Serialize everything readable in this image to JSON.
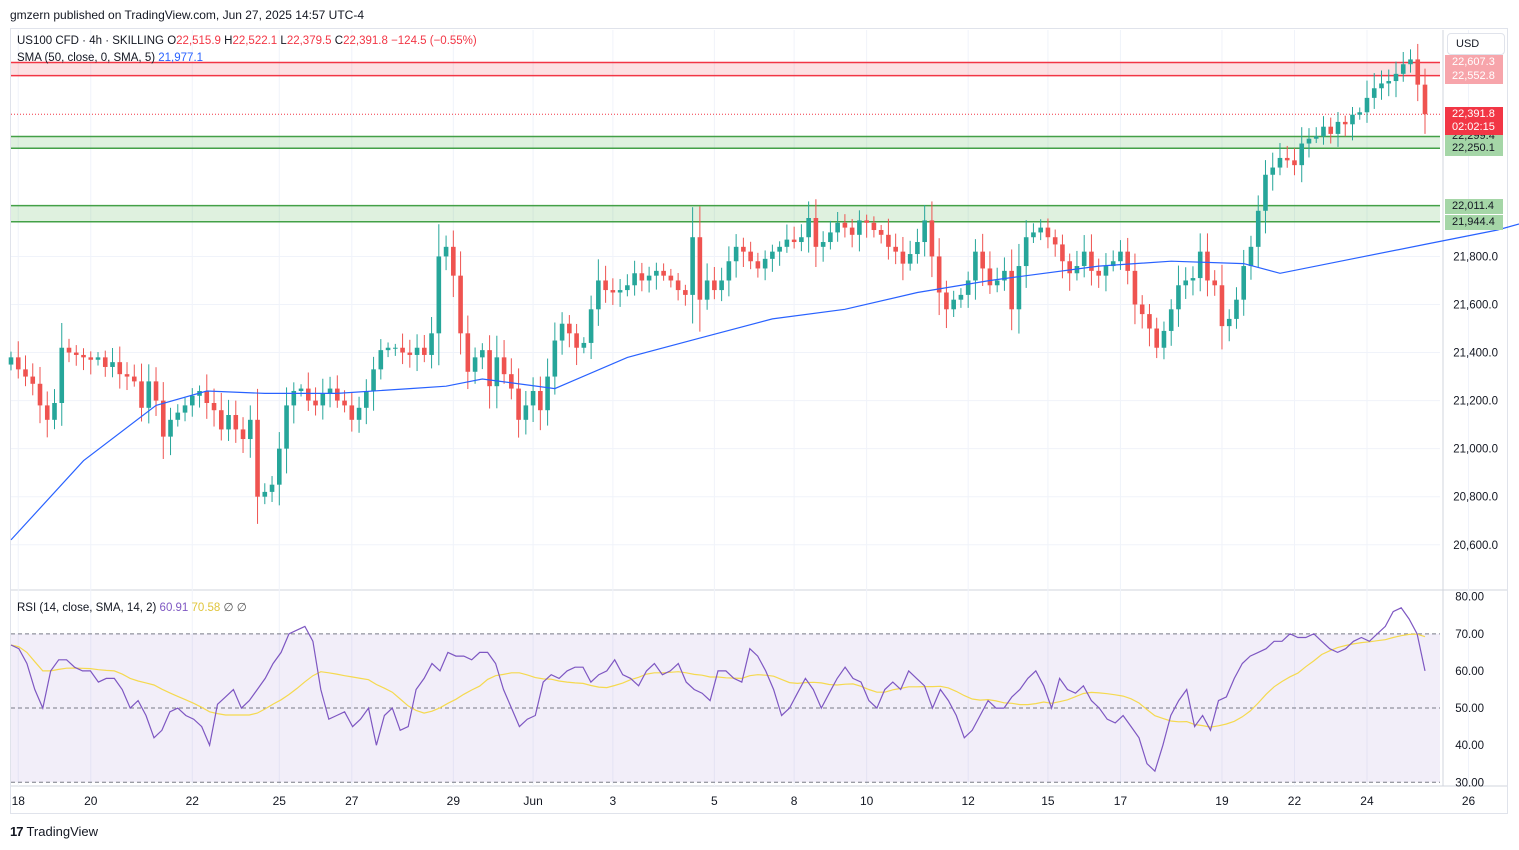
{
  "header": {
    "publish_text": "gmzern published on TradingView.com, Jun 27, 2025 14:57 UTC-4"
  },
  "legend": {
    "symbol": "US100 CFD · 4h · SKILLING",
    "o_label": "O",
    "o_value": "22,515.9",
    "h_label": "H",
    "h_value": "22,522.1",
    "l_label": "L",
    "l_value": "22,379.5",
    "c_label": "C",
    "c_value": "22,391.8",
    "change": "−124.5 (−0.55%)",
    "sma_label": "SMA (50, close, 0, SMA, 5)",
    "sma_value": "21,977.1",
    "rsi_label": "RSI (14, close, SMA, 14, 2)",
    "rsi_value": "60.91",
    "rsi_sma_value": "70.58",
    "rsi_empty1": "∅",
    "rsi_empty2": "∅"
  },
  "currency_button": "USD",
  "footer": {
    "brand": "TradingView",
    "logo_mark": "17"
  },
  "colors": {
    "up": "#26a69a",
    "down": "#ef5350",
    "sma": "#2962ff",
    "rsi": "#7e57c2",
    "rsi_sma": "#f5d94f",
    "resistance": "#f23645",
    "support": "#43a047"
  },
  "chart_data": {
    "type": "candlestick",
    "title": "US100 CFD · 4h · SKILLING",
    "price_axis": {
      "ticks": [
        20600,
        20800,
        21000,
        21200,
        21400,
        21600,
        21800
      ],
      "ylim": [
        20420,
        22730
      ]
    },
    "rsi_axis": {
      "ticks": [
        30,
        40,
        50,
        60,
        70,
        80
      ],
      "ylim": [
        29,
        81
      ]
    },
    "x_ticks": [
      {
        "label": "18",
        "i": 1
      },
      {
        "label": "20",
        "i": 11
      },
      {
        "label": "22",
        "i": 25
      },
      {
        "label": "25",
        "i": 37
      },
      {
        "label": "27",
        "i": 47
      },
      {
        "label": "29",
        "i": 61
      },
      {
        "label": "Jun",
        "i": 72
      },
      {
        "label": "3",
        "i": 83
      },
      {
        "label": "5",
        "i": 97
      },
      {
        "label": "8",
        "i": 108
      },
      {
        "label": "10",
        "i": 118
      },
      {
        "label": "12",
        "i": 132
      },
      {
        "label": "15",
        "i": 143
      },
      {
        "label": "17",
        "i": 153
      },
      {
        "label": "19",
        "i": 167
      },
      {
        "label": "22",
        "i": 177
      },
      {
        "label": "24",
        "i": 187
      },
      {
        "label": "26",
        "i": 201
      },
      {
        "label": "29",
        "i": 212
      }
    ],
    "zones": [
      {
        "kind": "resistance",
        "low": 22552.8,
        "high": 22607.3,
        "low_label": "22,552.8",
        "high_label": "22,607.3"
      },
      {
        "kind": "support",
        "low": 22250.1,
        "high": 22299.4,
        "low_label": "22,250.1",
        "high_label": "22,299.4"
      },
      {
        "kind": "support",
        "low": 21944.4,
        "high": 22011.4,
        "low_label": "21,944.4",
        "high_label": "22,011.4"
      }
    ],
    "last_price": {
      "value": 22391.8,
      "label": "22,391.8",
      "countdown": "02:02:15"
    },
    "closes": [
      21380,
      21330,
      21300,
      21270,
      21180,
      21120,
      21190,
      21420,
      21400,
      21390,
      21380,
      21370,
      21380,
      21340,
      21360,
      21310,
      21300,
      21280,
      21170,
      21280,
      21200,
      21050,
      21120,
      21150,
      21180,
      21220,
      21240,
      21190,
      21160,
      21080,
      21140,
      21080,
      21040,
      21120,
      20800,
      20820,
      20850,
      21000,
      21180,
      21240,
      21250,
      21200,
      21180,
      21230,
      21250,
      21200,
      21180,
      21120,
      21170,
      21240,
      21330,
      21410,
      21420,
      21420,
      21400,
      21390,
      21420,
      21390,
      21480,
      21800,
      21840,
      21720,
      21480,
      21320,
      21380,
      21410,
      21260,
      21380,
      21310,
      21250,
      21120,
      21180,
      21240,
      21160,
      21300,
      21450,
      21520,
      21480,
      21420,
      21440,
      21580,
      21700,
      21660,
      21650,
      21660,
      21680,
      21730,
      21700,
      21720,
      21740,
      21720,
      21700,
      21660,
      21640,
      21880,
      21620,
      21700,
      21660,
      21700,
      21780,
      21840,
      21820,
      21780,
      21750,
      21790,
      21820,
      21840,
      21870,
      21860,
      21880,
      21960,
      21840,
      21860,
      21900,
      21940,
      21920,
      21890,
      21950,
      21940,
      21910,
      21890,
      21840,
      21820,
      21770,
      21810,
      21860,
      21950,
      21800,
      21650,
      21580,
      21620,
      21640,
      21700,
      21820,
      21750,
      21680,
      21700,
      21740,
      21580,
      21760,
      21880,
      21900,
      21920,
      21880,
      21850,
      21780,
      21730,
      21760,
      21820,
      21740,
      21720,
      21760,
      21780,
      21820,
      21740,
      21600,
      21560,
      21500,
      21420,
      21490,
      21580,
      21680,
      21700,
      21710,
      21820,
      21700,
      21680,
      21510,
      21540,
      21620,
      21760,
      21840,
      21990,
      22140,
      22170,
      22210,
      22200,
      22180,
      22270,
      22290,
      22300,
      22340,
      22310,
      22360,
      22350,
      22390,
      22400,
      22460,
      22500,
      22520,
      22530,
      22560,
      22600,
      22620,
      22515,
      22392
    ],
    "sma_points": [
      [
        0,
        20620
      ],
      [
        10,
        20950
      ],
      [
        20,
        21180
      ],
      [
        27,
        21240
      ],
      [
        35,
        21230
      ],
      [
        45,
        21230
      ],
      [
        55,
        21250
      ],
      [
        60,
        21260
      ],
      [
        65,
        21290
      ],
      [
        75,
        21250
      ],
      [
        85,
        21380
      ],
      [
        95,
        21460
      ],
      [
        105,
        21540
      ],
      [
        115,
        21580
      ],
      [
        125,
        21650
      ],
      [
        135,
        21700
      ],
      [
        140,
        21720
      ],
      [
        150,
        21760
      ],
      [
        160,
        21780
      ],
      [
        170,
        21770
      ],
      [
        175,
        21730
      ],
      [
        185,
        21790
      ],
      [
        195,
        21850
      ],
      [
        205,
        21910
      ],
      [
        213,
        21977
      ]
    ],
    "rsi": [
      67,
      66,
      62,
      55,
      50,
      60,
      63,
      63,
      61,
      60,
      60,
      57,
      58,
      58,
      55,
      50,
      52,
      48,
      42,
      44,
      49,
      50,
      48,
      47,
      45,
      40,
      51,
      53,
      55,
      50,
      52,
      55,
      58,
      62,
      65,
      70,
      71,
      72,
      68,
      55,
      47,
      48,
      49,
      45,
      47,
      50,
      40,
      48,
      50,
      44,
      45,
      55,
      58,
      62,
      60,
      65,
      64,
      64,
      63,
      65,
      65,
      62,
      55,
      50,
      45,
      47,
      48,
      57,
      59,
      58,
      60,
      61,
      61,
      57,
      59,
      60,
      63,
      59,
      58,
      56,
      60,
      62,
      59,
      60,
      62,
      57,
      55,
      54,
      52,
      60,
      60,
      58,
      57,
      66,
      64,
      60,
      55,
      48,
      50,
      54,
      58,
      55,
      50,
      54,
      58,
      61,
      58,
      57,
      52,
      50,
      55,
      57,
      55,
      60,
      58,
      56,
      50,
      55,
      52,
      48,
      42,
      44,
      48,
      52,
      50,
      50,
      53,
      55,
      58,
      60,
      56,
      50,
      58,
      55,
      54,
      56,
      52,
      50,
      47,
      46,
      48,
      45,
      42,
      35,
      33,
      40,
      48,
      52,
      55,
      45,
      48,
      44,
      52,
      53,
      58,
      62,
      64,
      65,
      66,
      68,
      68,
      70,
      69,
      69,
      70,
      68,
      66,
      65,
      66,
      68,
      69,
      68,
      70,
      72,
      76,
      77,
      74,
      70,
      60
    ]
  }
}
